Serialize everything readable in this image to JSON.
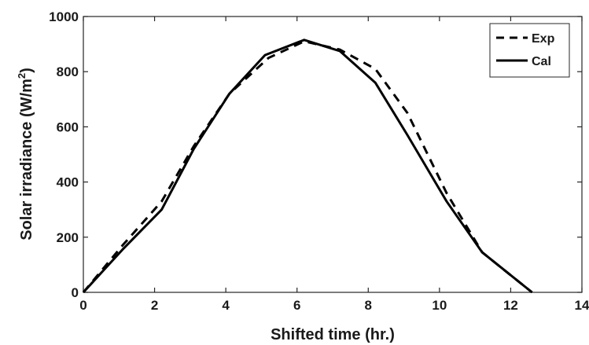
{
  "chart_data": {
    "type": "line",
    "xlabel": "Shifted time (hr.)",
    "ylabel": {
      "prefix": "Solar irradiance (W/m",
      "superscript": "2",
      "suffix": ")"
    },
    "xlim": [
      0,
      14
    ],
    "ylim": [
      0,
      1000
    ],
    "x_ticks": [
      0,
      2,
      4,
      6,
      8,
      10,
      12,
      14
    ],
    "y_ticks": [
      0,
      200,
      400,
      600,
      800,
      1000
    ],
    "grid": false,
    "legend_position": "top-right",
    "series": [
      {
        "name": "Exp",
        "style": "dashed",
        "color": "#000000",
        "x": [
          0,
          1.1,
          2.2,
          3.1,
          4.1,
          5.2,
          6.2,
          7.2,
          8.2,
          9.1,
          10.2,
          11.2,
          12.6
        ],
        "y": [
          0,
          170,
          330,
          530,
          720,
          850,
          910,
          880,
          810,
          650,
          360,
          145,
          0
        ]
      },
      {
        "name": "Cal",
        "style": "solid",
        "color": "#000000",
        "x": [
          0,
          1.1,
          2.2,
          3.1,
          4.1,
          5.1,
          6.2,
          7.2,
          8.2,
          9.1,
          10.2,
          11.2,
          12.6
        ],
        "y": [
          0,
          155,
          300,
          520,
          720,
          860,
          915,
          875,
          760,
          570,
          330,
          145,
          0
        ]
      }
    ]
  }
}
